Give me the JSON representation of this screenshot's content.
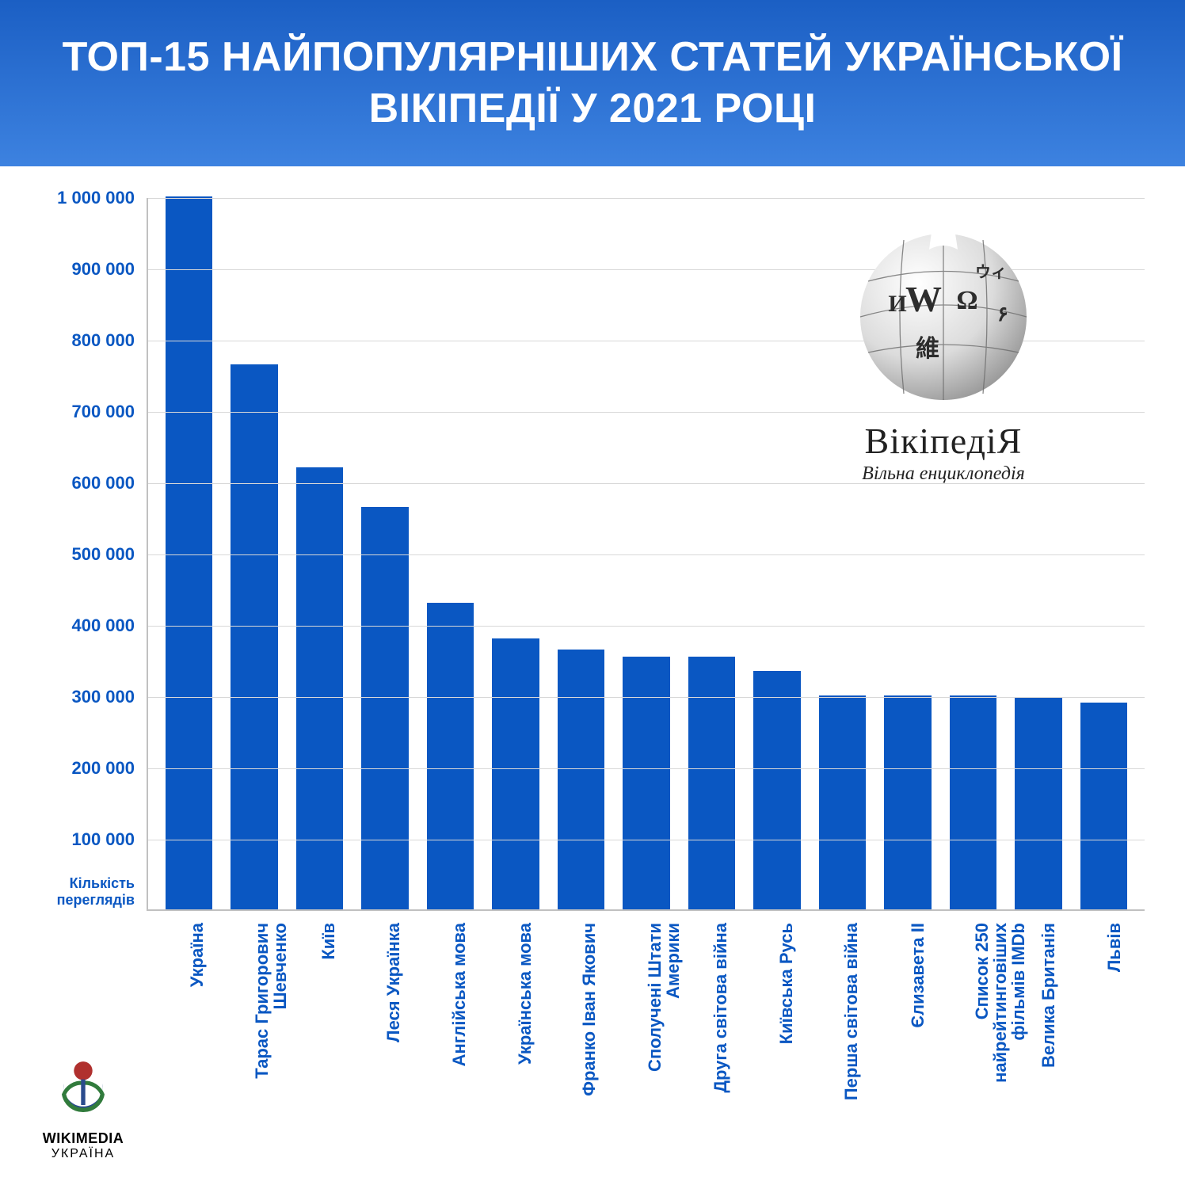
{
  "header": {
    "title": "ТОП-15 НАЙПОПУЛЯРНІШИХ СТАТЕЙ УКРАЇНСЬКОЇ ВІКІПЕДІЇ У 2021 РОЦІ",
    "background_gradient": [
      "#1b5fc4",
      "#3d82e0"
    ],
    "text_color": "#ffffff",
    "title_fontsize": 52
  },
  "chart": {
    "type": "bar",
    "y_axis_label": "Кількість переглядів",
    "ylim": [
      0,
      1000000
    ],
    "ytick_step": 100000,
    "yticks": [
      {
        "value": 100000,
        "label": "100 000"
      },
      {
        "value": 200000,
        "label": "200 000"
      },
      {
        "value": 300000,
        "label": "300 000"
      },
      {
        "value": 400000,
        "label": "400 000"
      },
      {
        "value": 500000,
        "label": "500 000"
      },
      {
        "value": 600000,
        "label": "600 000"
      },
      {
        "value": 700000,
        "label": "700 000"
      },
      {
        "value": 800000,
        "label": "800 000"
      },
      {
        "value": 900000,
        "label": "900 000"
      },
      {
        "value": 1000000,
        "label": "1 000 000"
      }
    ],
    "categories": [
      "Україна",
      "Тарас Григорович Шевченко",
      "Київ",
      "Леся Українка",
      "Англійська мова",
      "Українська мова",
      "Франко Іван Якович",
      "Сполучені Штати Америки",
      "Друга світова війна",
      "Київська Русь",
      "Перша світова війна",
      "Єлизавета II",
      "Список 250 найрейтинговіших фільмів IMDb",
      "Велика Британія",
      "Львів"
    ],
    "category_multiline": [
      false,
      true,
      false,
      false,
      false,
      false,
      true,
      true,
      true,
      false,
      true,
      false,
      true,
      false,
      false
    ],
    "values": [
      1000000,
      765000,
      620000,
      565000,
      430000,
      380000,
      365000,
      355000,
      355000,
      335000,
      300000,
      300000,
      300000,
      298000,
      290000
    ],
    "bar_color": "#0a57c2",
    "grid_color": "#d8d8d8",
    "axis_color": "#c0c0c0",
    "tick_text_color": "#0a57c2",
    "label_text_color": "#0a57c2",
    "background_color": "#ffffff",
    "bar_width": 0.72,
    "label_fontsize": 22
  },
  "wikipedia_logo": {
    "wordmark": "ВікіпедіЯ",
    "tagline": "Вільна енциклопедія",
    "text_color": "#222222",
    "globe_chars": [
      "W",
      "Ω",
      "維",
      "И",
      "ウィ",
      "۶"
    ]
  },
  "wikimedia_logo": {
    "line1": "WIKIMEDIA",
    "line2": "УКРАЇНА",
    "colors": {
      "red": "#b0302e",
      "blue": "#2a4b8d",
      "green": "#317b3c"
    }
  }
}
